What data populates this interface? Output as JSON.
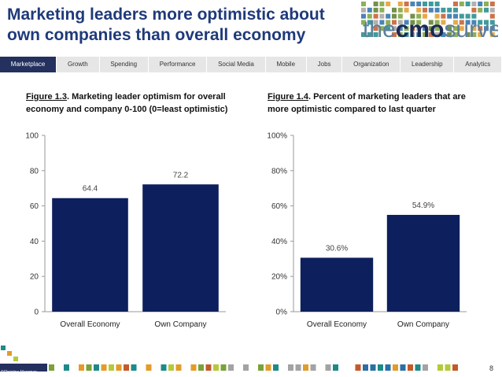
{
  "title_line1": "Marketing leaders more optimistic about",
  "title_line2": "own companies than overall economy",
  "logo": {
    "text_pre": "the",
    "text_bold": "cmo",
    "text_post": "survey"
  },
  "nav": {
    "tabs": [
      "Marketplace",
      "Growth",
      "Spending",
      "Performance",
      "Social Media",
      "Mobile",
      "Jobs",
      "Organization",
      "Leadership",
      "Analytics"
    ],
    "active": "Marketplace"
  },
  "fig13": {
    "number": "Figure 1.3",
    "caption_rest": ". Marketing leader optimism for overall",
    "caption_line2": "economy and company 0-100 (0=least optimistic)"
  },
  "fig14": {
    "number": "Figure 1.4",
    "caption_rest": ".  Percent of marketing leaders that are",
    "caption_line2": "more optimistic compared to last quarter"
  },
  "chart_data": [
    {
      "type": "bar",
      "title": "Marketing leader optimism for overall economy and company 0-100 (0=least optimistic)",
      "categories": [
        "Overall Economy",
        "Own Company"
      ],
      "values": [
        64.4,
        72.2
      ],
      "value_labels": [
        "64.4",
        "72.2"
      ],
      "ylim": [
        0,
        100
      ],
      "yticks": [
        0,
        20,
        40,
        60,
        80,
        100
      ],
      "ytick_labels": [
        "0",
        "20",
        "40",
        "60",
        "80",
        "100"
      ],
      "xlabel": "",
      "ylabel": "",
      "bar_color": "#0d1f5c"
    },
    {
      "type": "bar",
      "title": "Percent of marketing leaders that are more optimistic compared to last quarter",
      "categories": [
        "Overall Economy",
        "Own Company"
      ],
      "values": [
        30.6,
        54.9
      ],
      "value_labels": [
        "30.6%",
        "54.9%"
      ],
      "ylim": [
        0,
        100
      ],
      "yticks": [
        0,
        20,
        40,
        60,
        80,
        100
      ],
      "ytick_labels": [
        "0%",
        "20%",
        "40%",
        "60%",
        "80%",
        "100%"
      ],
      "xlabel": "",
      "ylabel": "",
      "bar_color": "#0d1f5c"
    }
  ],
  "footer": {
    "copyright": "©Christine Moorman",
    "page_number": "8"
  },
  "colors": {
    "title": "#1f3a7a",
    "nav_active": "#24305e",
    "nav_bg": "#e6e6e6"
  }
}
